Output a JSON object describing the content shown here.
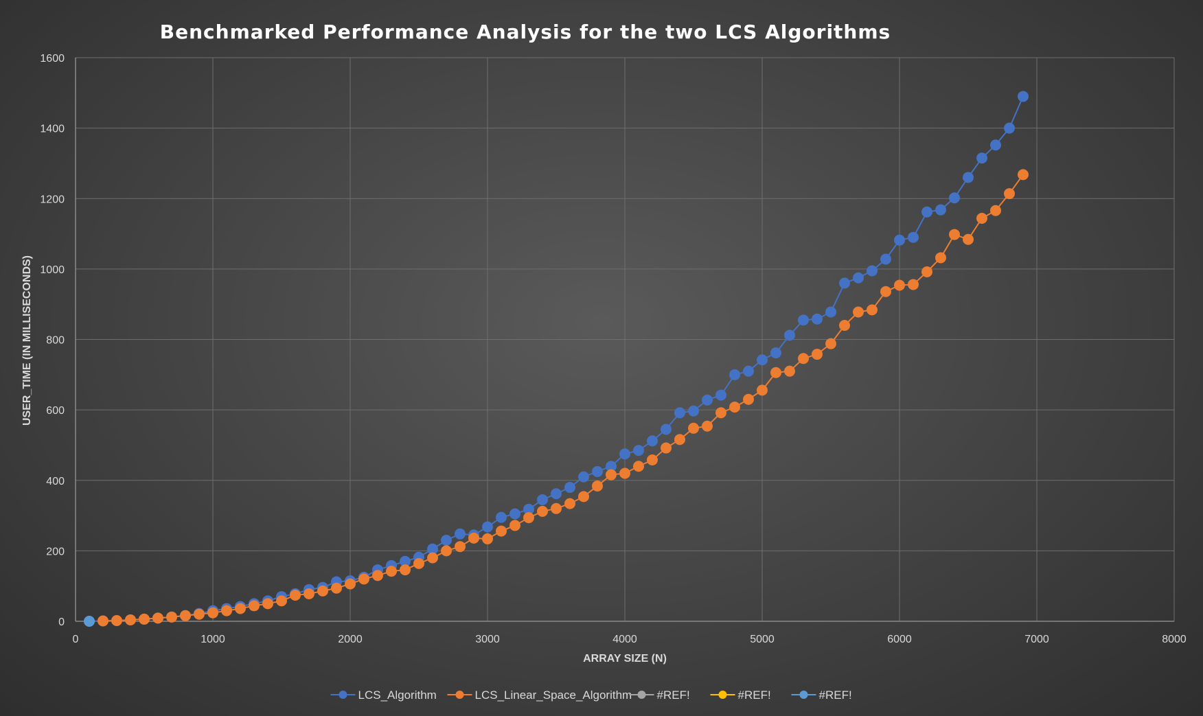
{
  "chart_data": {
    "type": "scatter",
    "title": "Benchmarked Performance Analysis for the two LCS Algorithms",
    "xlabel": "ARRAY SIZE (N)",
    "ylabel": "USER_TIME (IN MILLISECONDS)",
    "xlim": [
      0,
      8000
    ],
    "ylim": [
      0,
      1600
    ],
    "x_ticks": [
      0,
      1000,
      2000,
      3000,
      4000,
      5000,
      6000,
      7000,
      8000
    ],
    "y_ticks": [
      0,
      200,
      400,
      600,
      800,
      1000,
      1200,
      1400,
      1600
    ],
    "grid": true,
    "legend_position": "bottom",
    "series": [
      {
        "name": "LCS_Algorithm",
        "color": "#4472C4",
        "x": [
          100,
          200,
          300,
          400,
          500,
          600,
          700,
          800,
          900,
          1000,
          1100,
          1200,
          1300,
          1400,
          1500,
          1600,
          1700,
          1800,
          1900,
          2000,
          2100,
          2200,
          2300,
          2400,
          2500,
          2600,
          2700,
          2800,
          2900,
          3000,
          3100,
          3200,
          3300,
          3400,
          3500,
          3600,
          3700,
          3800,
          3900,
          4000,
          4100,
          4200,
          4300,
          4400,
          4500,
          4600,
          4700,
          4800,
          4900,
          5000,
          5100,
          5200,
          5300,
          5400,
          5500,
          5600,
          5700,
          5800,
          5900,
          6000,
          6100,
          6200,
          6300,
          6400,
          6500,
          6600,
          6700,
          6800,
          6900
        ],
        "y": [
          0,
          1,
          2,
          4,
          6,
          9,
          12,
          16,
          22,
          30,
          36,
          42,
          50,
          58,
          70,
          78,
          90,
          96,
          112,
          115,
          125,
          146,
          158,
          170,
          182,
          205,
          230,
          248,
          245,
          268,
          295,
          305,
          318,
          345,
          362,
          380,
          410,
          425,
          440,
          475,
          485,
          512,
          545,
          592,
          597,
          628,
          642,
          700,
          710,
          742,
          762,
          812,
          855,
          858,
          878,
          960,
          975,
          995,
          1028,
          1082,
          1090,
          1162,
          1168,
          1202,
          1260,
          1315,
          1352,
          1400,
          1490
        ]
      },
      {
        "name": "LCS_Linear_Space_Algorithm",
        "color": "#ED7D31",
        "x": [
          200,
          300,
          400,
          500,
          600,
          700,
          800,
          900,
          1000,
          1100,
          1200,
          1300,
          1400,
          1500,
          1600,
          1700,
          1800,
          1900,
          2000,
          2100,
          2200,
          2300,
          2400,
          2500,
          2600,
          2700,
          2800,
          2900,
          3000,
          3100,
          3200,
          3300,
          3400,
          3500,
          3600,
          3700,
          3800,
          3900,
          4000,
          4100,
          4200,
          4300,
          4400,
          4500,
          4600,
          4700,
          4800,
          4900,
          5000,
          5100,
          5200,
          5300,
          5400,
          5500,
          5600,
          5700,
          5800,
          5900,
          6000,
          6100,
          6200,
          6300,
          6400,
          6500,
          6600,
          6700,
          6800,
          6900
        ],
        "y": [
          1,
          2,
          4,
          6,
          9,
          12,
          16,
          20,
          24,
          30,
          36,
          44,
          50,
          58,
          74,
          78,
          86,
          94,
          106,
          120,
          130,
          142,
          146,
          164,
          180,
          200,
          212,
          236,
          234,
          256,
          272,
          294,
          312,
          320,
          334,
          354,
          384,
          416,
          420,
          440,
          458,
          492,
          516,
          548,
          554,
          592,
          608,
          630,
          656,
          706,
          710,
          746,
          758,
          788,
          840,
          878,
          884,
          936,
          954,
          956,
          992,
          1032,
          1098,
          1084,
          1144,
          1166,
          1214,
          1268
        ]
      },
      {
        "name": "#REF!",
        "color": "#A5A5A5",
        "x": [],
        "y": []
      },
      {
        "name": "#REF!",
        "color": "#FFC000",
        "x": [],
        "y": []
      },
      {
        "name": "#REF!",
        "color": "#5B9BD5",
        "x": [
          100
        ],
        "y": [
          0
        ]
      }
    ]
  }
}
